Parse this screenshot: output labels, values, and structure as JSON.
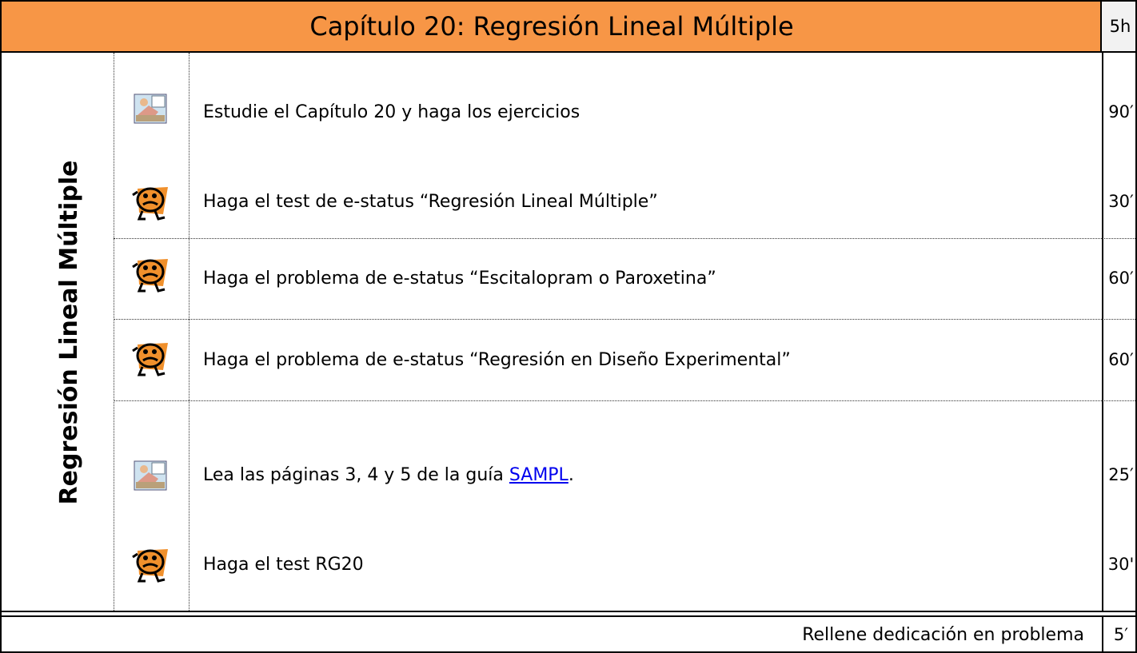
{
  "header": {
    "title": "Capítulo 20: Regresión Lineal Múltiple",
    "hours": "5h"
  },
  "side_label": "Regresión Lineal Múltiple",
  "items": [
    {
      "text": "Estudie el Capítulo 20 y haga los ejercicios",
      "minutes": "90′"
    },
    {
      "text": "Haga el test de e-status “Regresión Lineal Múltiple”",
      "minutes": "30′"
    },
    {
      "text": "Haga el problema de e-status “Escitalopram o Paroxetina”",
      "minutes": "60′"
    },
    {
      "text": "Haga el problema de e-status “Regresión en Diseño Experimental”",
      "minutes": "60′"
    },
    {
      "text": "Lea las páginas 3, 4 y 5 de la guía ",
      "link": "SAMPL",
      "suffix": ".",
      "minutes": "25′"
    },
    {
      "text": "Haga el test RG20",
      "minutes": "30'"
    }
  ],
  "footer": {
    "text": "Rellene dedicación en problema",
    "minutes": "5′"
  }
}
